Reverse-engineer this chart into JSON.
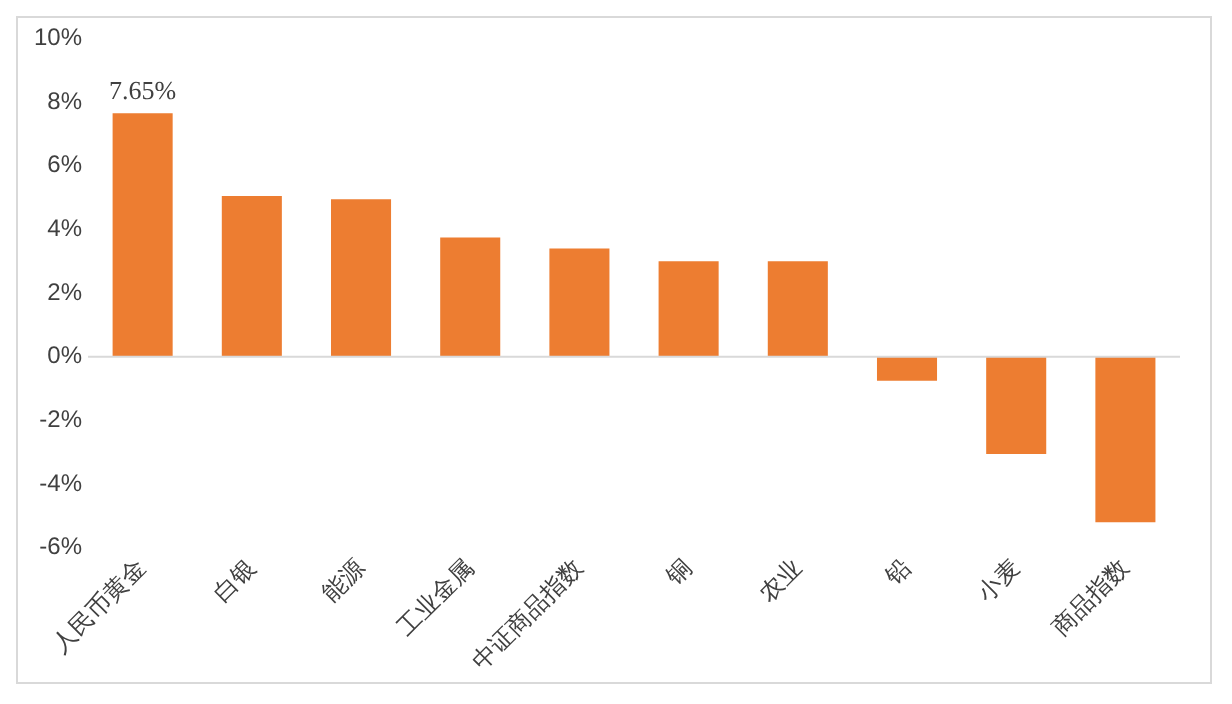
{
  "chart_data": {
    "type": "bar",
    "categories": [
      "人民币黄金",
      "白银",
      "能源",
      "工业金属",
      "中证商品指数",
      "铜",
      "农业",
      "铅",
      "小麦",
      "商品指数"
    ],
    "values": [
      7.65,
      5.05,
      4.95,
      3.75,
      3.4,
      3.0,
      3.0,
      -0.75,
      -3.05,
      -5.2
    ],
    "value_labels": [
      "7.65%",
      null,
      null,
      null,
      null,
      null,
      null,
      null,
      null,
      null
    ],
    "color": "#ed7d31",
    "ylim": [
      -6,
      10
    ],
    "yticks": [
      {
        "value": -6,
        "label": "-6%"
      },
      {
        "value": -4,
        "label": "-4%"
      },
      {
        "value": -2,
        "label": "-2%"
      },
      {
        "value": 0,
        "label": "0%"
      },
      {
        "value": 2,
        "label": "2%"
      },
      {
        "value": 4,
        "label": "4%"
      },
      {
        "value": 6,
        "label": "6%"
      },
      {
        "value": 8,
        "label": "8%"
      },
      {
        "value": 10,
        "label": "10%"
      }
    ],
    "ref_lines": [
      {
        "axis": "y",
        "value": 0,
        "color": "#d9d9d9"
      }
    ],
    "grid": false,
    "legend": false
  }
}
